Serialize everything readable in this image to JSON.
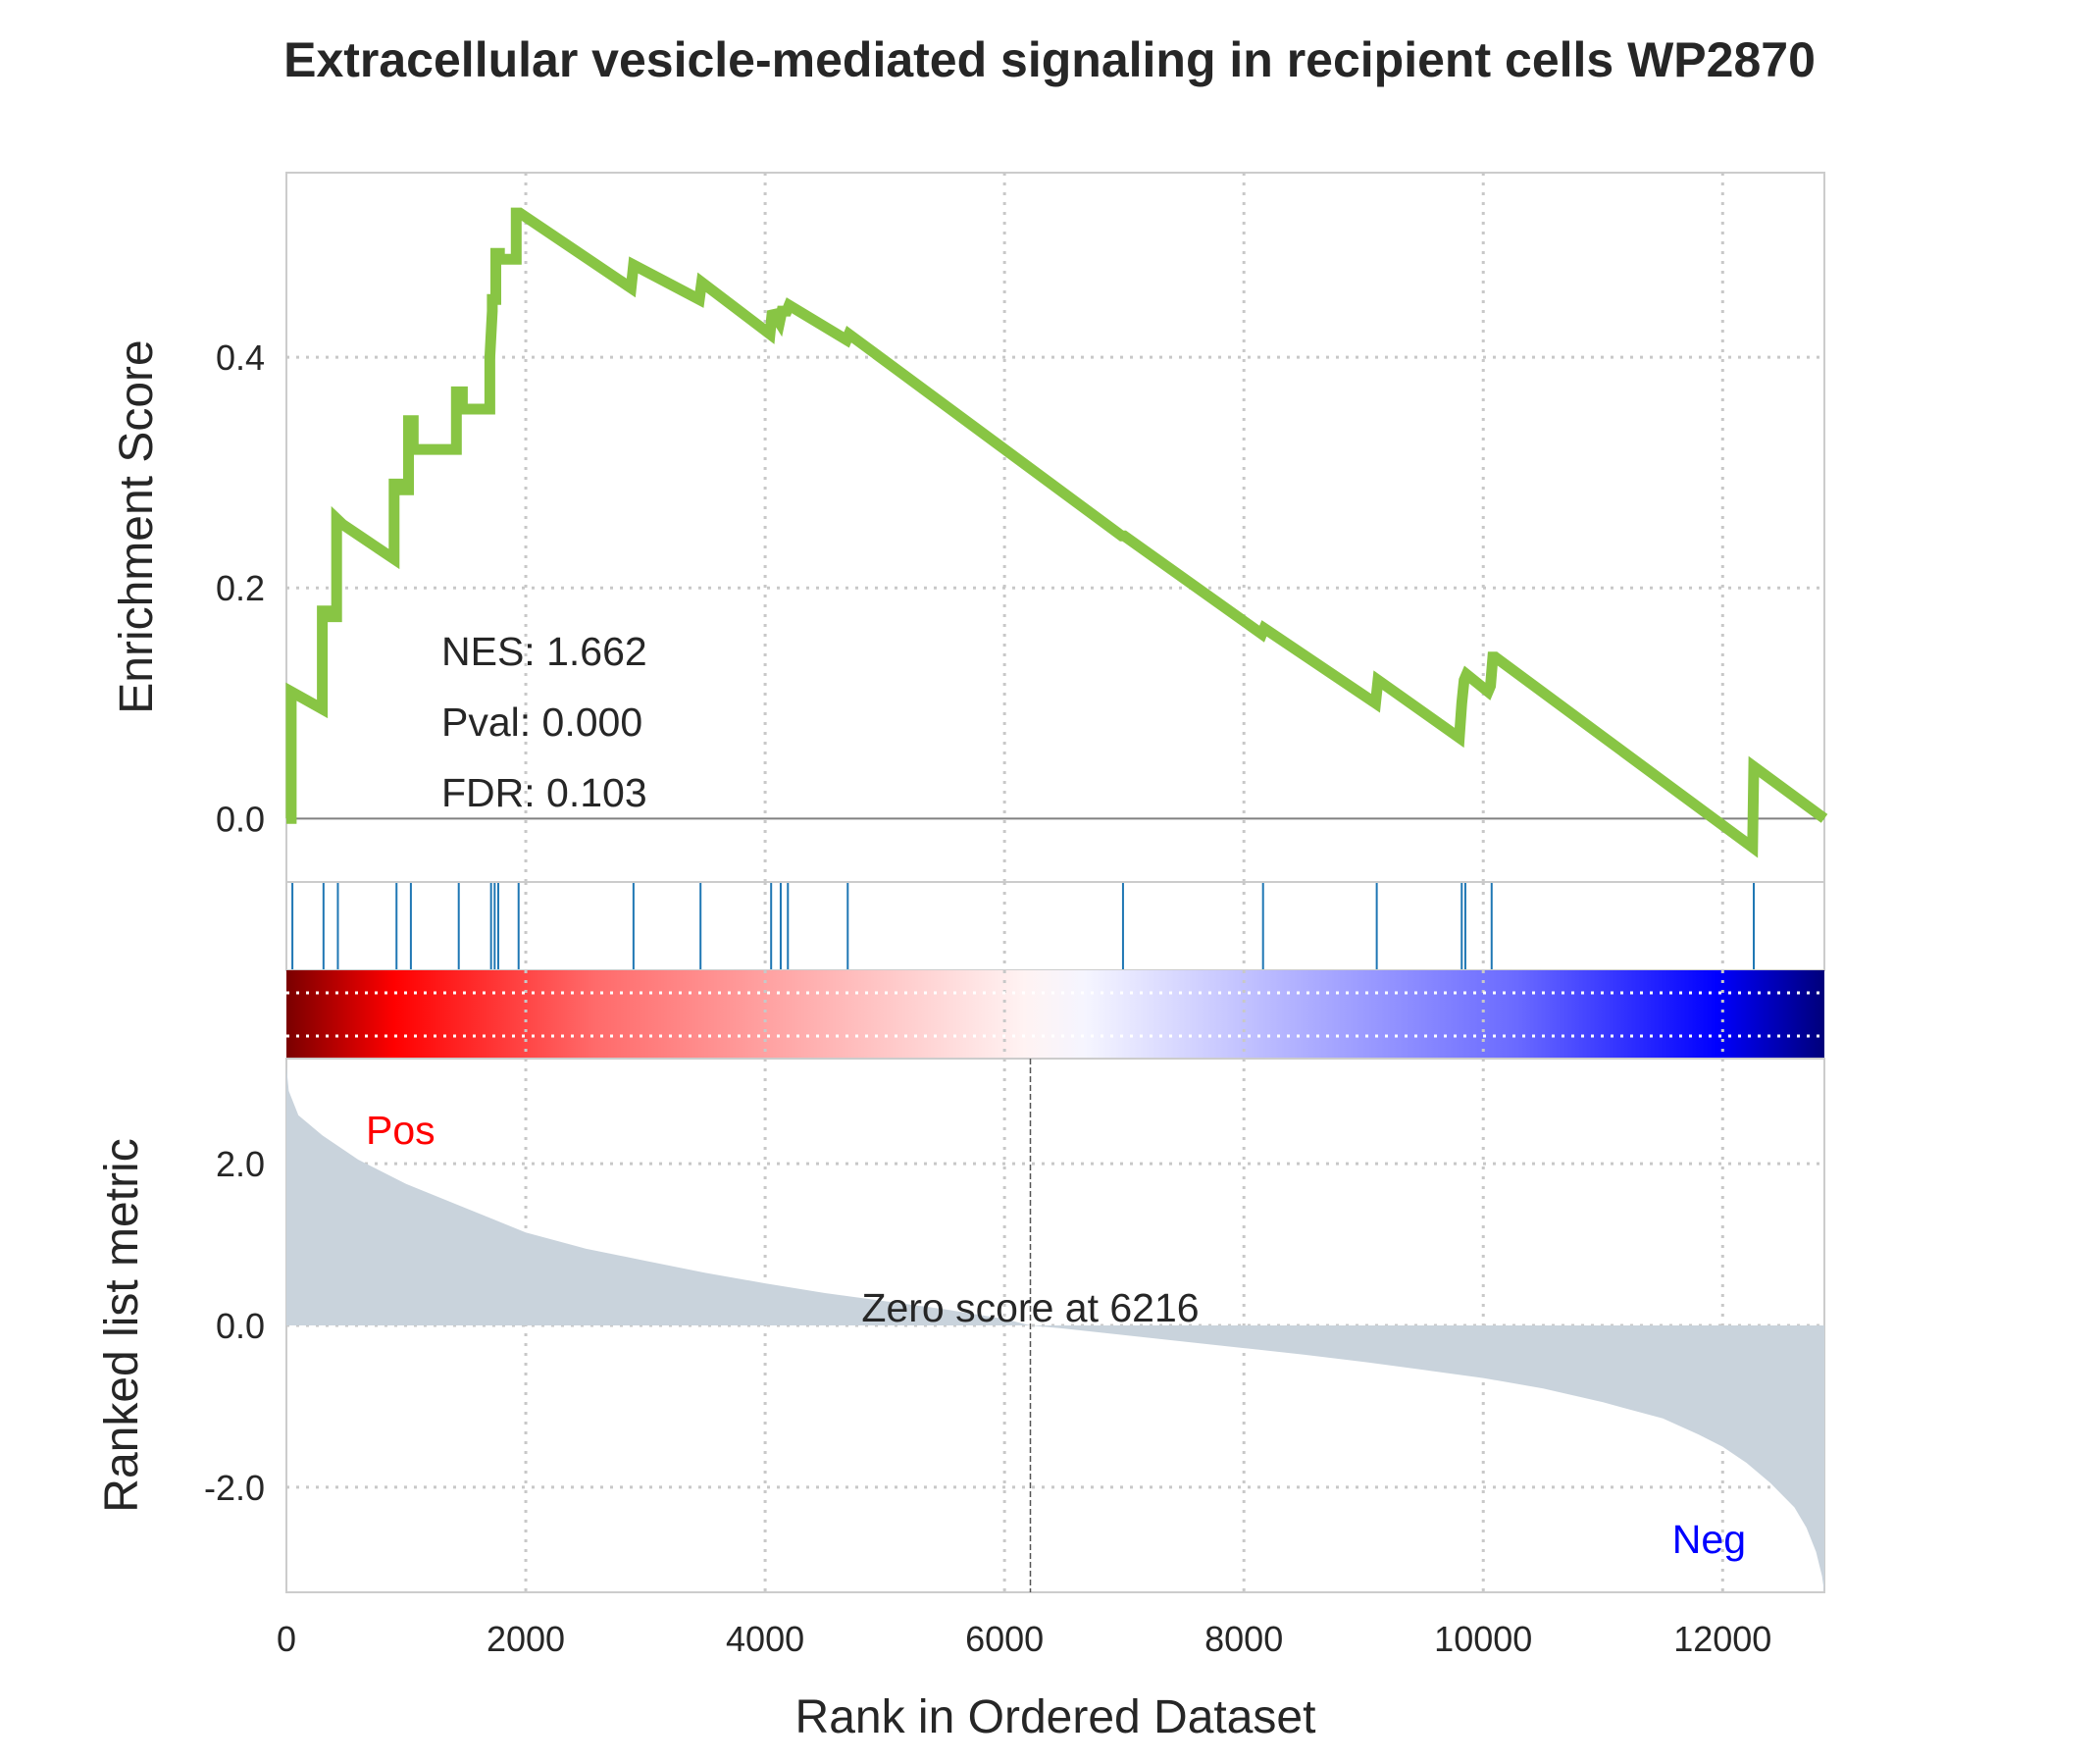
{
  "chart_data": {
    "type": "line",
    "title": "Extracellular vesicle-mediated signaling in recipient cells WP2870",
    "xlabel": "Rank in Ordered Dataset",
    "xlim": [
      0,
      12850
    ],
    "x_ticks": [
      0,
      2000,
      4000,
      6000,
      8000,
      10000,
      12000
    ],
    "grid": true,
    "top_panel": {
      "ylabel": "Enrichment Score",
      "ylim": [
        -0.055,
        0.56
      ],
      "y_ticks": [
        0.0,
        0.2,
        0.4
      ],
      "y_tick_labels": [
        "0.0",
        "0.2",
        "0.4"
      ],
      "line_color": "#88c544",
      "stats": [
        "NES: 1.662",
        "Pval: 0.000",
        "FDR: 0.103"
      ],
      "series": [
        {
          "x": [
            0,
            40,
            40,
            300,
            300,
            340,
            340,
            420,
            420,
            470,
            470,
            900,
            900,
            950,
            950,
            1020,
            1020,
            1060,
            1060,
            1420,
            1420,
            1470,
            1470,
            1700,
            1700,
            1720,
            1720,
            1750,
            1750,
            1780,
            1780,
            1920,
            1920,
            1950,
            2880,
            2900,
            3450,
            3470,
            4040,
            4060,
            4120,
            4140,
            4180,
            4200,
            4680,
            4700,
            6980,
            7000,
            8150,
            8170,
            9100,
            9120,
            9800,
            9820,
            9840,
            9860,
            10040,
            10060,
            10080,
            10100,
            12250,
            12260,
            12850
          ],
          "y": [
            0.0,
            0.0,
            0.11,
            0.095,
            0.18,
            0.18,
            0.175,
            0.175,
            0.26,
            0.255,
            0.255,
            0.225,
            0.29,
            0.29,
            0.285,
            0.285,
            0.345,
            0.345,
            0.32,
            0.32,
            0.37,
            0.37,
            0.355,
            0.355,
            0.4,
            0.44,
            0.45,
            0.45,
            0.49,
            0.49,
            0.485,
            0.485,
            0.525,
            0.525,
            0.46,
            0.48,
            0.45,
            0.465,
            0.42,
            0.44,
            0.43,
            0.44,
            0.44,
            0.445,
            0.415,
            0.42,
            0.245,
            0.245,
            0.16,
            0.165,
            0.1,
            0.12,
            0.07,
            0.1,
            0.12,
            0.125,
            0.11,
            0.115,
            0.14,
            0.14,
            -0.025,
            0.045,
            0.0
          ]
        }
      ]
    },
    "hit_positions": [
      50,
      310,
      430,
      920,
      1040,
      1440,
      1710,
      1740,
      1770,
      1940,
      2900,
      3460,
      4050,
      4130,
      4190,
      4690,
      6990,
      8160,
      9110,
      9820,
      9850,
      10070,
      12260
    ],
    "bottom_panel": {
      "ylabel": "Ranked list metric",
      "ylim": [
        -3.3,
        3.3
      ],
      "y_ticks": [
        -2.0,
        0.0,
        2.0
      ],
      "y_tick_labels": [
        "-2.0",
        "0.0",
        "2.0"
      ],
      "fill_color": "#c9d3dc",
      "zero_score_label": "Zero score at 6216",
      "zero_score_rank": 6216,
      "pos_label": "Pos",
      "neg_label": "Neg",
      "curve": {
        "x": [
          0,
          20,
          100,
          300,
          600,
          1000,
          1500,
          2000,
          2500,
          3000,
          3500,
          4000,
          4500,
          5000,
          5500,
          6000,
          6216,
          6500,
          7000,
          7500,
          8000,
          8500,
          9000,
          9500,
          10000,
          10500,
          11000,
          11500,
          11800,
          12000,
          12200,
          12400,
          12600,
          12700,
          12780,
          12830,
          12850
        ],
        "y": [
          3.2,
          2.9,
          2.6,
          2.35,
          2.05,
          1.75,
          1.45,
          1.15,
          0.95,
          0.8,
          0.65,
          0.52,
          0.4,
          0.3,
          0.2,
          0.08,
          0.0,
          -0.04,
          -0.12,
          -0.2,
          -0.28,
          -0.36,
          -0.45,
          -0.55,
          -0.65,
          -0.78,
          -0.95,
          -1.15,
          -1.35,
          -1.5,
          -1.7,
          -1.95,
          -2.25,
          -2.5,
          -2.8,
          -3.1,
          -3.3
        ]
      }
    }
  }
}
